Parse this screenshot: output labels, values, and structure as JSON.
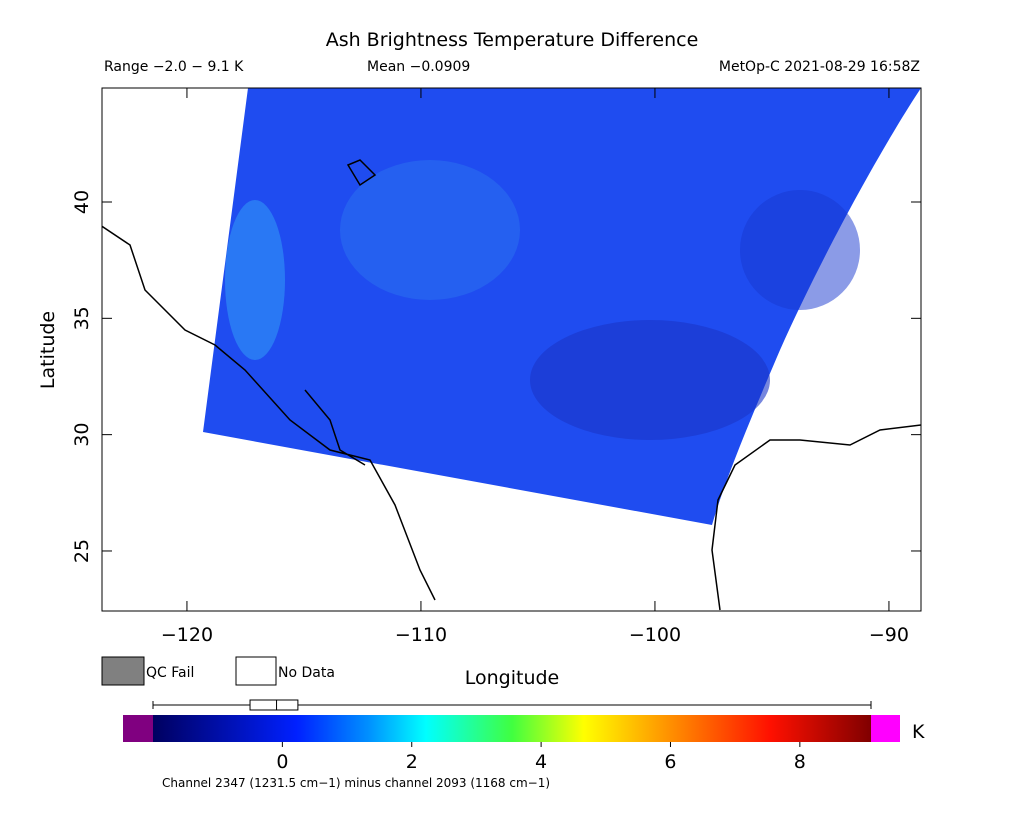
{
  "title": "Ash Brightness Temperature Difference",
  "range_text": "Range −2.0 − 9.1 K",
  "mean_text": "Mean −0.0909",
  "source_text": "MetOp-C 2021-08-29 16:58Z",
  "map": {
    "ylabel": "Latitude",
    "xlabel": "Longitude",
    "xlim": [
      -123.63,
      -88.63
    ],
    "ylim": [
      22.42,
      44.9
    ],
    "xticks": [
      {
        "value": -120,
        "label": "−120"
      },
      {
        "value": -110,
        "label": "−110"
      },
      {
        "value": -100,
        "label": "−100"
      },
      {
        "value": -90,
        "label": "−90"
      }
    ],
    "yticks": [
      25,
      30,
      35,
      40
    ]
  },
  "legend": [
    "QC Fail",
    "No Data"
  ],
  "colorbar": {
    "lim": [
      -2,
      9.1
    ],
    "ticks": [
      0,
      2,
      4,
      6,
      8
    ],
    "unit": "K",
    "caption": "Channel 2347 (1231.5 cm−1) minus channel 2093 (1168 cm−1)",
    "box": {
      "min": -2,
      "q1": -0.5,
      "median": -0.09,
      "q3": 0.24,
      "max": 9.1
    }
  }
}
